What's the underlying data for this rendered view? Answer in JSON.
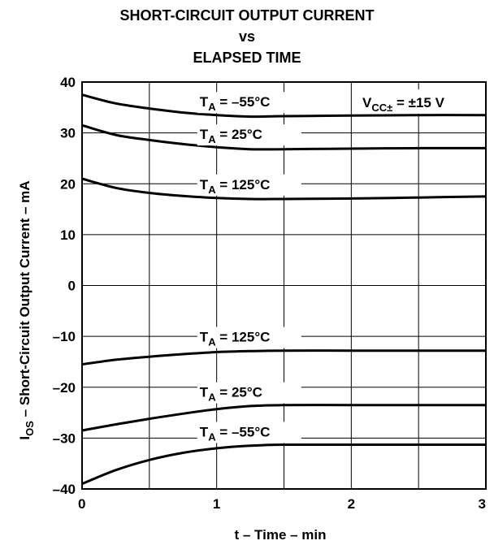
{
  "chart_data": {
    "type": "line",
    "title": [
      "SHORT-CIRCUIT OUTPUT CURRENT",
      "vs",
      "ELAPSED TIME"
    ],
    "xlabel": "t – Time – min",
    "ylabel": {
      "main": "I",
      "sub": "OS",
      "rest": " – Short-Circuit Output Current – mA"
    },
    "xlim": [
      0,
      3
    ],
    "ylim": [
      -40,
      40
    ],
    "xticks": [
      0,
      1,
      2,
      3
    ],
    "xtick_labels": [
      "0",
      "1",
      "2",
      "3"
    ],
    "yticks": [
      40,
      30,
      20,
      10,
      0,
      -10,
      -20,
      -30,
      -40
    ],
    "ytick_labels": [
      "40",
      "30",
      "20",
      "10",
      "0",
      "–10",
      "–20",
      "–30",
      "–40"
    ],
    "grid": true,
    "annotation_vcc": {
      "main": "V",
      "sub": "CC±",
      "rest": " = ±15 V"
    },
    "series": [
      {
        "name": "T_A = –55°C",
        "x": [
          0,
          0.25,
          0.5,
          0.75,
          1.0,
          1.25,
          1.5,
          2.0,
          2.5,
          3.0
        ],
        "y": [
          37.5,
          35.8,
          34.8,
          34.0,
          33.5,
          33.2,
          33.3,
          33.4,
          33.5,
          33.5
        ]
      },
      {
        "name": "T_A = 25°C",
        "x": [
          0,
          0.25,
          0.5,
          0.75,
          1.0,
          1.25,
          1.5,
          2.0,
          2.5,
          3.0
        ],
        "y": [
          31.5,
          29.6,
          28.6,
          27.8,
          27.2,
          26.8,
          26.8,
          26.9,
          27.0,
          27.0
        ]
      },
      {
        "name": "T_A = 125°C",
        "x": [
          0,
          0.25,
          0.5,
          0.75,
          1.0,
          1.25,
          1.5,
          2.0,
          2.5,
          3.0
        ],
        "y": [
          21.0,
          19.2,
          18.2,
          17.6,
          17.2,
          17.0,
          17.0,
          17.1,
          17.3,
          17.5
        ]
      },
      {
        "name": "T_A = 125°C",
        "x": [
          0,
          0.25,
          0.5,
          0.75,
          1.0,
          1.25,
          1.5,
          2.0,
          2.5,
          3.0
        ],
        "y": [
          -15.5,
          -14.6,
          -14.0,
          -13.5,
          -13.1,
          -12.9,
          -12.8,
          -12.8,
          -12.8,
          -12.8
        ]
      },
      {
        "name": "T_A = 25°C",
        "x": [
          0,
          0.25,
          0.5,
          0.75,
          1.0,
          1.25,
          1.5,
          2.0,
          2.5,
          3.0
        ],
        "y": [
          -28.5,
          -27.3,
          -26.2,
          -25.2,
          -24.3,
          -23.7,
          -23.5,
          -23.5,
          -23.5,
          -23.5
        ]
      },
      {
        "name": "T_A = –55°C",
        "x": [
          0,
          0.25,
          0.5,
          0.75,
          1.0,
          1.25,
          1.5,
          2.0,
          2.5,
          3.0
        ],
        "y": [
          -39.0,
          -36.3,
          -34.3,
          -32.9,
          -32.0,
          -31.5,
          -31.3,
          -31.3,
          -31.3,
          -31.3
        ]
      }
    ],
    "curve_labels": [
      {
        "main": "T",
        "sub": "A",
        "rest": " = –55°C"
      },
      {
        "main": "T",
        "sub": "A",
        "rest": " = 25°C"
      },
      {
        "main": "T",
        "sub": "A",
        "rest": " = 125°C"
      },
      {
        "main": "T",
        "sub": "A",
        "rest": " = 125°C"
      },
      {
        "main": "T",
        "sub": "A",
        "rest": " = 25°C"
      },
      {
        "main": "T",
        "sub": "A",
        "rest": " = –55°C"
      }
    ]
  }
}
